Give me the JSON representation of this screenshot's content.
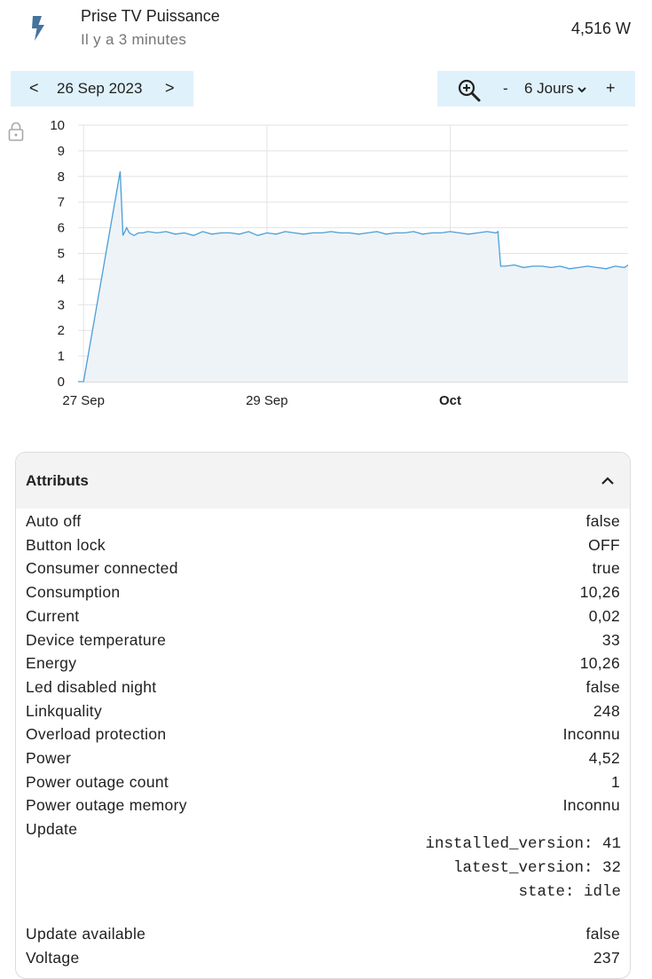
{
  "header": {
    "title": "Prise TV Puissance",
    "subtitle": "Il y a 3 minutes",
    "state": "4,516 W",
    "icon": "flash-icon",
    "icon_color": "#44739e"
  },
  "date_nav": {
    "prev_label": "<",
    "date": "26 Sep 2023",
    "next_label": ">"
  },
  "range_nav": {
    "zoom_icon": "zoom-in-icon",
    "minus_label": "-",
    "range_label": "6 Jours",
    "plus_label": "+"
  },
  "colors": {
    "accent_bg": "#dff1fb",
    "line": "#4a9fd8",
    "fill": "#eef3f7",
    "grid": "#e3e3e3"
  },
  "chart_data": {
    "type": "area",
    "title": "",
    "xlabel": "",
    "ylabel": "",
    "ylim": [
      0,
      10
    ],
    "y_ticks": [
      "0",
      "1",
      "2",
      "3",
      "4",
      "5",
      "6",
      "7",
      "8",
      "9",
      "10"
    ],
    "x_ticks": [
      {
        "label": "27 Sep",
        "day": 1,
        "bold": false
      },
      {
        "label": "29 Sep",
        "day": 3,
        "bold": false
      },
      {
        "label": "Oct",
        "day": 5,
        "bold": true
      }
    ],
    "x_unit": "days since 26 Sep 2023 00:00",
    "grid": true,
    "series": [
      {
        "x": [
          0.94,
          1.0,
          1.4,
          1.43,
          1.47,
          1.5,
          1.55,
          1.6,
          1.65,
          1.7,
          1.8,
          1.9,
          2.0,
          2.1,
          2.2,
          2.3,
          2.4,
          2.5,
          2.6,
          2.7,
          2.8,
          2.9,
          3.0,
          3.1,
          3.2,
          3.3,
          3.4,
          3.5,
          3.6,
          3.7,
          3.8,
          3.9,
          4.0,
          4.1,
          4.2,
          4.3,
          4.4,
          4.5,
          4.6,
          4.7,
          4.8,
          4.9,
          5.0,
          5.1,
          5.2,
          5.3,
          5.4,
          5.5,
          5.52,
          5.55,
          5.6,
          5.7,
          5.8,
          5.9,
          6.0,
          6.1,
          6.2,
          6.3,
          6.4,
          6.5,
          6.6,
          6.7,
          6.8,
          6.9,
          6.94
        ],
        "values": [
          0,
          0,
          8.2,
          5.7,
          6.0,
          5.8,
          5.7,
          5.8,
          5.8,
          5.85,
          5.8,
          5.85,
          5.75,
          5.8,
          5.7,
          5.85,
          5.75,
          5.8,
          5.8,
          5.75,
          5.85,
          5.7,
          5.8,
          5.75,
          5.85,
          5.8,
          5.75,
          5.8,
          5.8,
          5.85,
          5.8,
          5.8,
          5.75,
          5.8,
          5.85,
          5.75,
          5.8,
          5.8,
          5.85,
          5.75,
          5.8,
          5.8,
          5.85,
          5.8,
          5.75,
          5.8,
          5.85,
          5.8,
          5.85,
          4.5,
          4.5,
          4.55,
          4.45,
          4.5,
          4.5,
          4.45,
          4.5,
          4.4,
          4.45,
          4.5,
          4.45,
          4.4,
          4.5,
          4.45,
          4.55
        ]
      }
    ]
  },
  "attributes": {
    "title": "Attributs",
    "rows": [
      {
        "key": "Auto off",
        "value": "false"
      },
      {
        "key": "Button lock",
        "value": "OFF"
      },
      {
        "key": "Consumer connected",
        "value": "true"
      },
      {
        "key": "Consumption",
        "value": "10,26"
      },
      {
        "key": "Current",
        "value": "0,02"
      },
      {
        "key": "Device temperature",
        "value": "33"
      },
      {
        "key": "Energy",
        "value": "10,26"
      },
      {
        "key": "Led disabled night",
        "value": "false"
      },
      {
        "key": "Linkquality",
        "value": "248"
      },
      {
        "key": "Overload protection",
        "value": "Inconnu"
      },
      {
        "key": "Power",
        "value": "4,52"
      },
      {
        "key": "Power outage count",
        "value": "1"
      },
      {
        "key": "Power outage memory",
        "value": "Inconnu"
      },
      {
        "key": "Update",
        "value": ""
      },
      {
        "key": "Update available",
        "value": "false"
      },
      {
        "key": "Voltage",
        "value": "237"
      }
    ],
    "update_block": [
      "installed_version: 41",
      "latest_version: 32",
      "state: idle"
    ]
  }
}
